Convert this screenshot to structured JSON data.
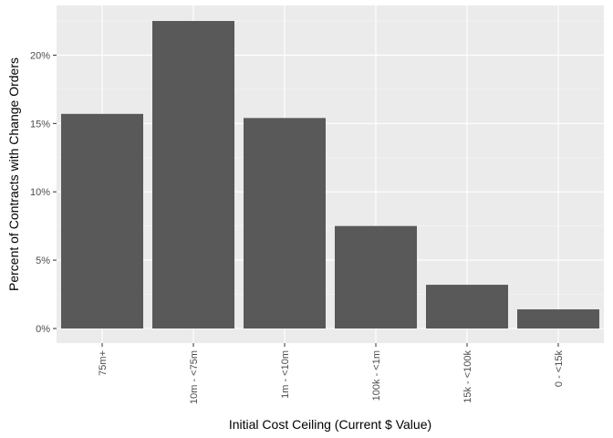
{
  "chart_data": {
    "type": "bar",
    "title": "",
    "xlabel": "Initial Cost Ceiling (Current $ Value)",
    "ylabel": "Percent of Contracts with Change Orders",
    "categories": [
      "75m+",
      "10m - <75m",
      "1m - <10m",
      "100k - <1m",
      "15k - <100k",
      "0 - <15k"
    ],
    "values": [
      0.157,
      0.225,
      0.154,
      0.075,
      0.032,
      0.014
    ],
    "ylim": [
      0,
      0.235
    ],
    "yticks": [
      0,
      0.05,
      0.1,
      0.15,
      0.2
    ],
    "ytick_labels": [
      "0%",
      "5%",
      "10%",
      "15%",
      "20%"
    ],
    "grid": true,
    "legend": "none",
    "colors": {
      "bar": "#595959",
      "panel": "#ebebeb",
      "grid_major": "#ffffff",
      "text": "#4d4d4d"
    }
  }
}
